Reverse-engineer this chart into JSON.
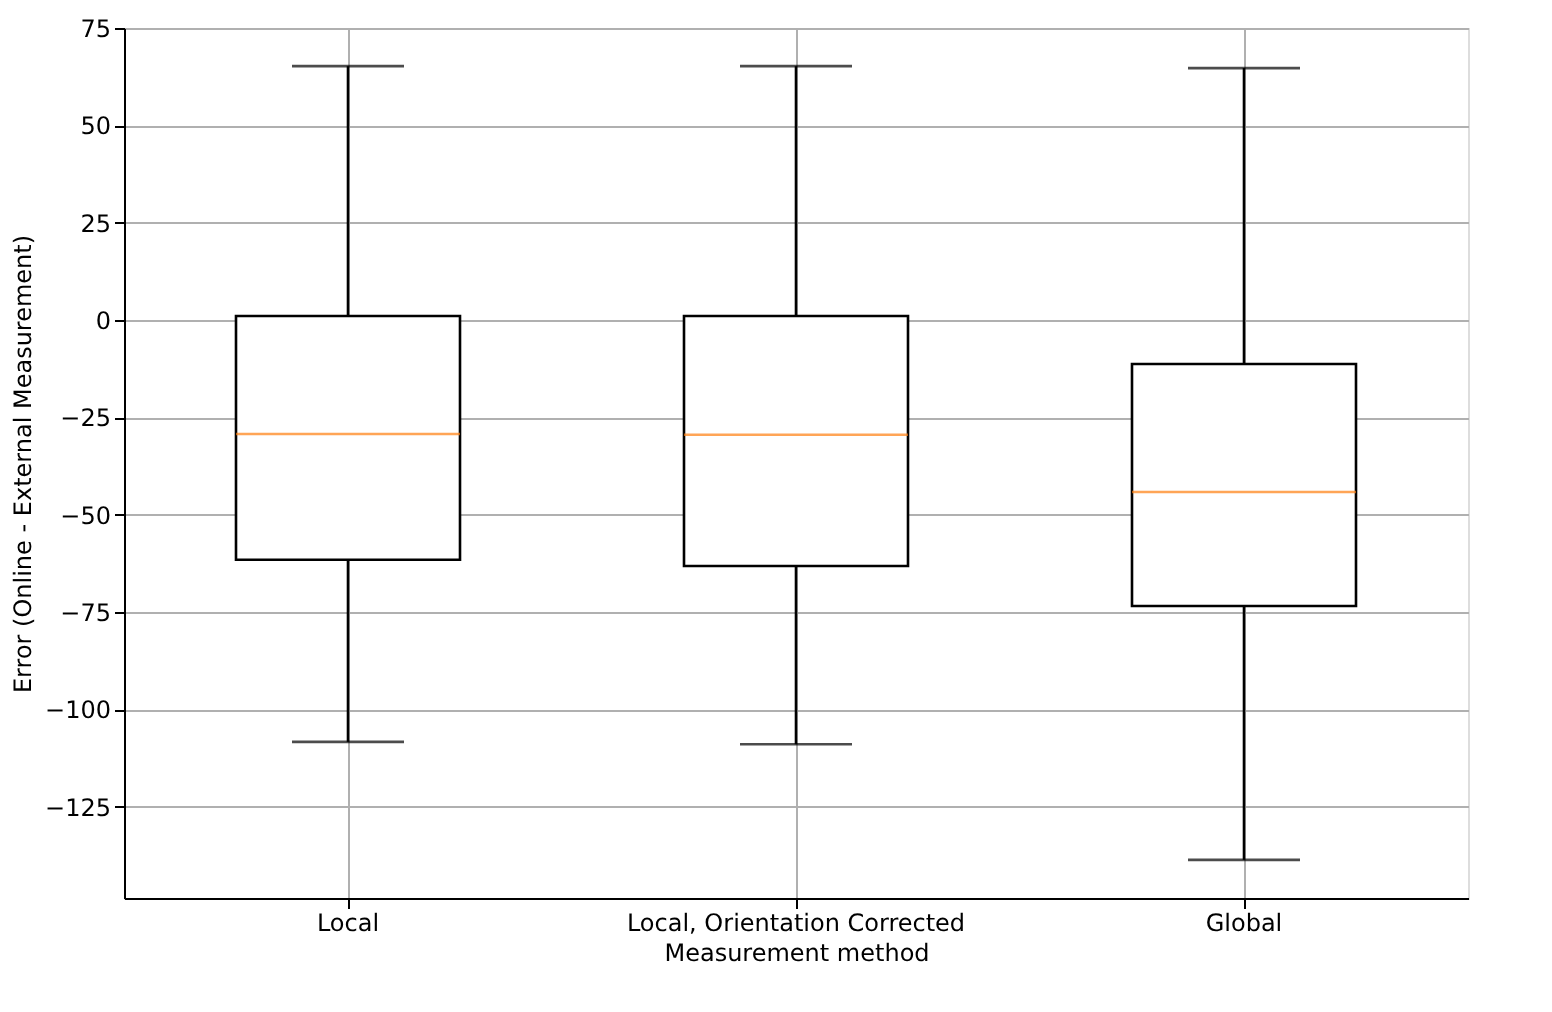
{
  "chart_data": {
    "type": "box",
    "xlabel": "Measurement method",
    "ylabel": "Error (Online - External Measurement)",
    "categories": [
      "Local",
      "Local, Orientation Corrected",
      "Global"
    ],
    "boxes": [
      {
        "low": -108.4,
        "q1": -61.6,
        "median": -29.3,
        "q3": 1,
        "high": 65.2
      },
      {
        "low": -109,
        "q1": -63.2,
        "median": -29.5,
        "q3": 1,
        "high": 65.2
      },
      {
        "low": -138.7,
        "q1": -73.5,
        "median": -44.2,
        "q3": -11.3,
        "high": 64.7
      }
    ],
    "color": "#000000",
    "ylim": [
      -148.5,
      75
    ],
    "yticks": [
      -125,
      -100,
      -75,
      -50,
      -25,
      0,
      25,
      50,
      75
    ],
    "grid": true
  }
}
